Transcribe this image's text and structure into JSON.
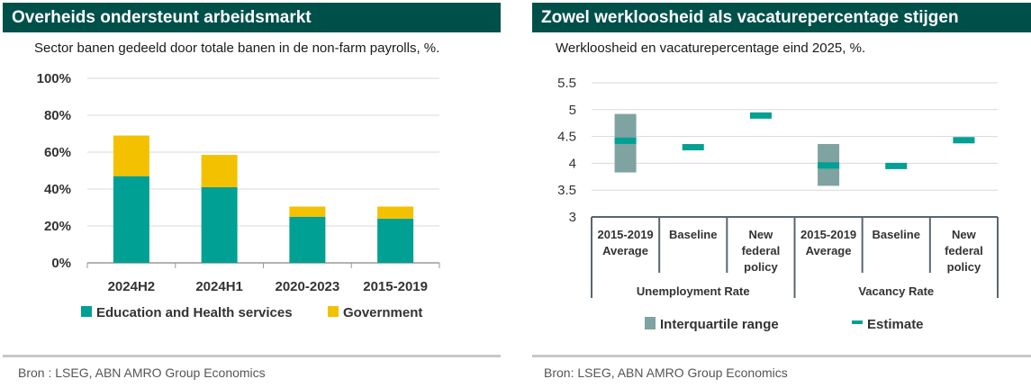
{
  "left": {
    "title": "Overheids ondersteunt arbeidsmarkt",
    "subtitle": "Sector banen gedeeld door totale banen in de non-farm payrolls, %.",
    "source": "Bron :  LSEG, ABN AMRO Group Economics",
    "chart_data": {
      "type": "bar",
      "stacked": true,
      "categories": [
        "2024H2",
        "2024H1",
        "2020-2023",
        "2015-2019"
      ],
      "series": [
        {
          "name": "Education and Health services",
          "color": "#00a094",
          "values": [
            47,
            41,
            25,
            24
          ]
        },
        {
          "name": "Government",
          "color": "#f4c100",
          "values": [
            22,
            17.5,
            5.5,
            6.5
          ]
        }
      ],
      "ylim": [
        0,
        100
      ],
      "yticks": [
        0,
        20,
        40,
        60,
        80,
        100
      ],
      "ytick_labels": [
        "0%",
        "20%",
        "40%",
        "60%",
        "80%",
        "100%"
      ],
      "grid": true,
      "legend_position": "bottom"
    }
  },
  "right": {
    "title": "Zowel werkloosheid als vacaturepercentage stijgen",
    "subtitle": "Werkloosheid en vacaturepercentage eind 2025, %.",
    "source": "Bron: LSEG, ABN AMRO Group Economics",
    "chart_data": {
      "type": "range",
      "ylim": [
        3,
        5.5
      ],
      "yticks": [
        3,
        3.5,
        4,
        4.5,
        5,
        5.5
      ],
      "ytick_labels": [
        "3",
        "3.5",
        "4",
        "4.5",
        "5",
        "5.5"
      ],
      "grid": true,
      "groups": [
        {
          "label": "Unemployment Rate",
          "categories": [
            {
              "label": [
                "2015-2019",
                "Average"
              ],
              "range": [
                3.83,
                4.92
              ],
              "estimate": 4.42
            },
            {
              "label": [
                "Baseline"
              ],
              "estimate": 4.3
            },
            {
              "label": [
                "New",
                "federal",
                "policy"
              ],
              "estimate": 4.89
            }
          ]
        },
        {
          "label": "Vacancy Rate",
          "categories": [
            {
              "label": [
                "2015-2019",
                "Average"
              ],
              "range": [
                3.58,
                4.36
              ],
              "estimate": 3.96
            },
            {
              "label": [
                "Baseline"
              ],
              "estimate": 3.95
            },
            {
              "label": [
                "New",
                "federal",
                "policy"
              ],
              "estimate": 4.43
            }
          ]
        }
      ],
      "legend": [
        {
          "name": "Interquartile range",
          "color": "#7ea3a0"
        },
        {
          "name": "Estimate",
          "color": "#00a094"
        }
      ],
      "legend_position": "bottom"
    }
  }
}
